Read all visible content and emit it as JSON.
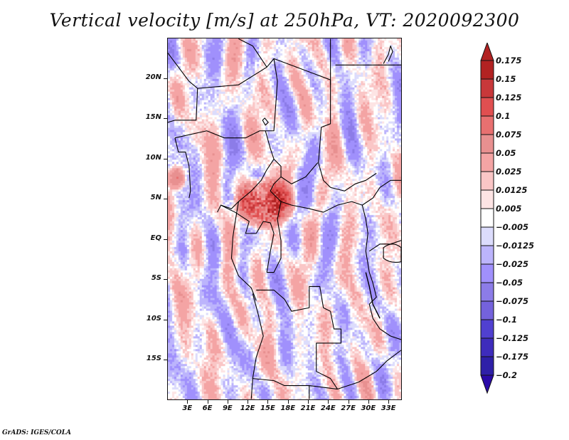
{
  "title": "Vertical velocity [m/s] at 250hPa, VT: 2020092300",
  "credit": "GrADS: IGES/COLA",
  "map": {
    "projection": "latlon",
    "lon_range_deg": [
      0,
      35
    ],
    "lat_range_deg": [
      -20,
      25
    ],
    "y_axis_labels": [
      {
        "label": "20N",
        "lat": 20
      },
      {
        "label": "15N",
        "lat": 15
      },
      {
        "label": "10N",
        "lat": 10
      },
      {
        "label": "5N",
        "lat": 5
      },
      {
        "label": "EQ",
        "lat": 0
      },
      {
        "label": "5S",
        "lat": -5
      },
      {
        "label": "10S",
        "lat": -10
      },
      {
        "label": "15S",
        "lat": -15
      }
    ],
    "x_axis_labels": [
      {
        "label": "3E",
        "lon": 3
      },
      {
        "label": "6E",
        "lon": 6
      },
      {
        "label": "9E",
        "lon": 9
      },
      {
        "label": "12E",
        "lon": 12
      },
      {
        "label": "15E",
        "lon": 15
      },
      {
        "label": "18E",
        "lon": 18
      },
      {
        "label": "21E",
        "lon": 21
      },
      {
        "label": "24E",
        "lon": 24
      },
      {
        "label": "27E",
        "lon": 27
      },
      {
        "label": "30E",
        "lon": 30
      },
      {
        "label": "33E",
        "lon": 33
      }
    ],
    "field": "vertical velocity",
    "units": "m/s",
    "level": "250hPa",
    "valid_time": "2020092300",
    "region_of_strong_ascent": "Cameroon / Central African Republic near 3-7N, 10-16E"
  },
  "colorbar": {
    "orientation": "vertical",
    "extend": "both",
    "levels": [
      {
        "label": "0.175",
        "color": "#b22222"
      },
      {
        "label": "0.15",
        "color": "#c8383a"
      },
      {
        "label": "0.125",
        "color": "#e04f50"
      },
      {
        "label": "0.1",
        "color": "#e87070"
      },
      {
        "label": "0.075",
        "color": "#e89090"
      },
      {
        "label": "0.05",
        "color": "#f4a4a4"
      },
      {
        "label": "0.025",
        "color": "#fac6c6"
      },
      {
        "label": "0.0125",
        "color": "#fde4e4"
      },
      {
        "label": "0.005",
        "color": "#ffffff"
      },
      {
        "label": "-0.005",
        "color": "#dcdcfc"
      },
      {
        "label": "-0.0125",
        "color": "#bcb4fc"
      },
      {
        "label": "-0.025",
        "color": "#a090fc"
      },
      {
        "label": "-0.05",
        "color": "#8c7ce8"
      },
      {
        "label": "-0.075",
        "color": "#7462dc"
      },
      {
        "label": "-0.1",
        "color": "#5040d0"
      },
      {
        "label": "-0.125",
        "color": "#3e2cbc"
      },
      {
        "label": "-0.175",
        "color": "#2e20a8"
      },
      {
        "label": "-0.2",
        "color": "#1e0c9c"
      }
    ],
    "top_arrow_color": "#b22222",
    "bottom_arrow_color": "#2a0aa8"
  }
}
